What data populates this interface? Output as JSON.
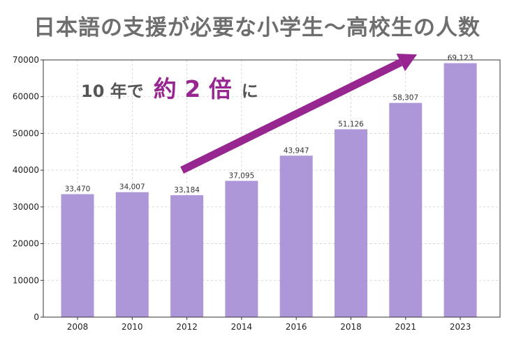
{
  "chart_data": {
    "type": "bar",
    "title": "日本語の支援が必要な小学生〜高校生の人数",
    "categories": [
      "2008",
      "2010",
      "2012",
      "2014",
      "2016",
      "2018",
      "2021",
      "2023"
    ],
    "values": [
      33470,
      34007,
      33184,
      37095,
      43947,
      51126,
      58307,
      69123
    ],
    "value_labels": [
      "33,470",
      "34,007",
      "33,184",
      "37,095",
      "43,947",
      "51,126",
      "58,307",
      "69,123"
    ],
    "xlabel": "",
    "ylabel": "",
    "ylim": [
      0,
      70000
    ],
    "yticks": [
      0,
      10000,
      20000,
      30000,
      40000,
      50000,
      60000,
      70000
    ],
    "ytick_labels": [
      "0",
      "10000",
      "20000",
      "30000",
      "40000",
      "50000",
      "60000",
      "70000"
    ],
    "grid": true,
    "bar_color": "#ad97d9",
    "annotation": {
      "prefix": "10 年で",
      "highlight": "約 2 倍",
      "suffix": "に",
      "highlight_color": "#972691",
      "text_color": "#555555"
    },
    "arrow": {
      "color": "#972691",
      "from_category": "2012",
      "from_value": 40000,
      "to_category": "2023",
      "to_value": 71500
    }
  }
}
